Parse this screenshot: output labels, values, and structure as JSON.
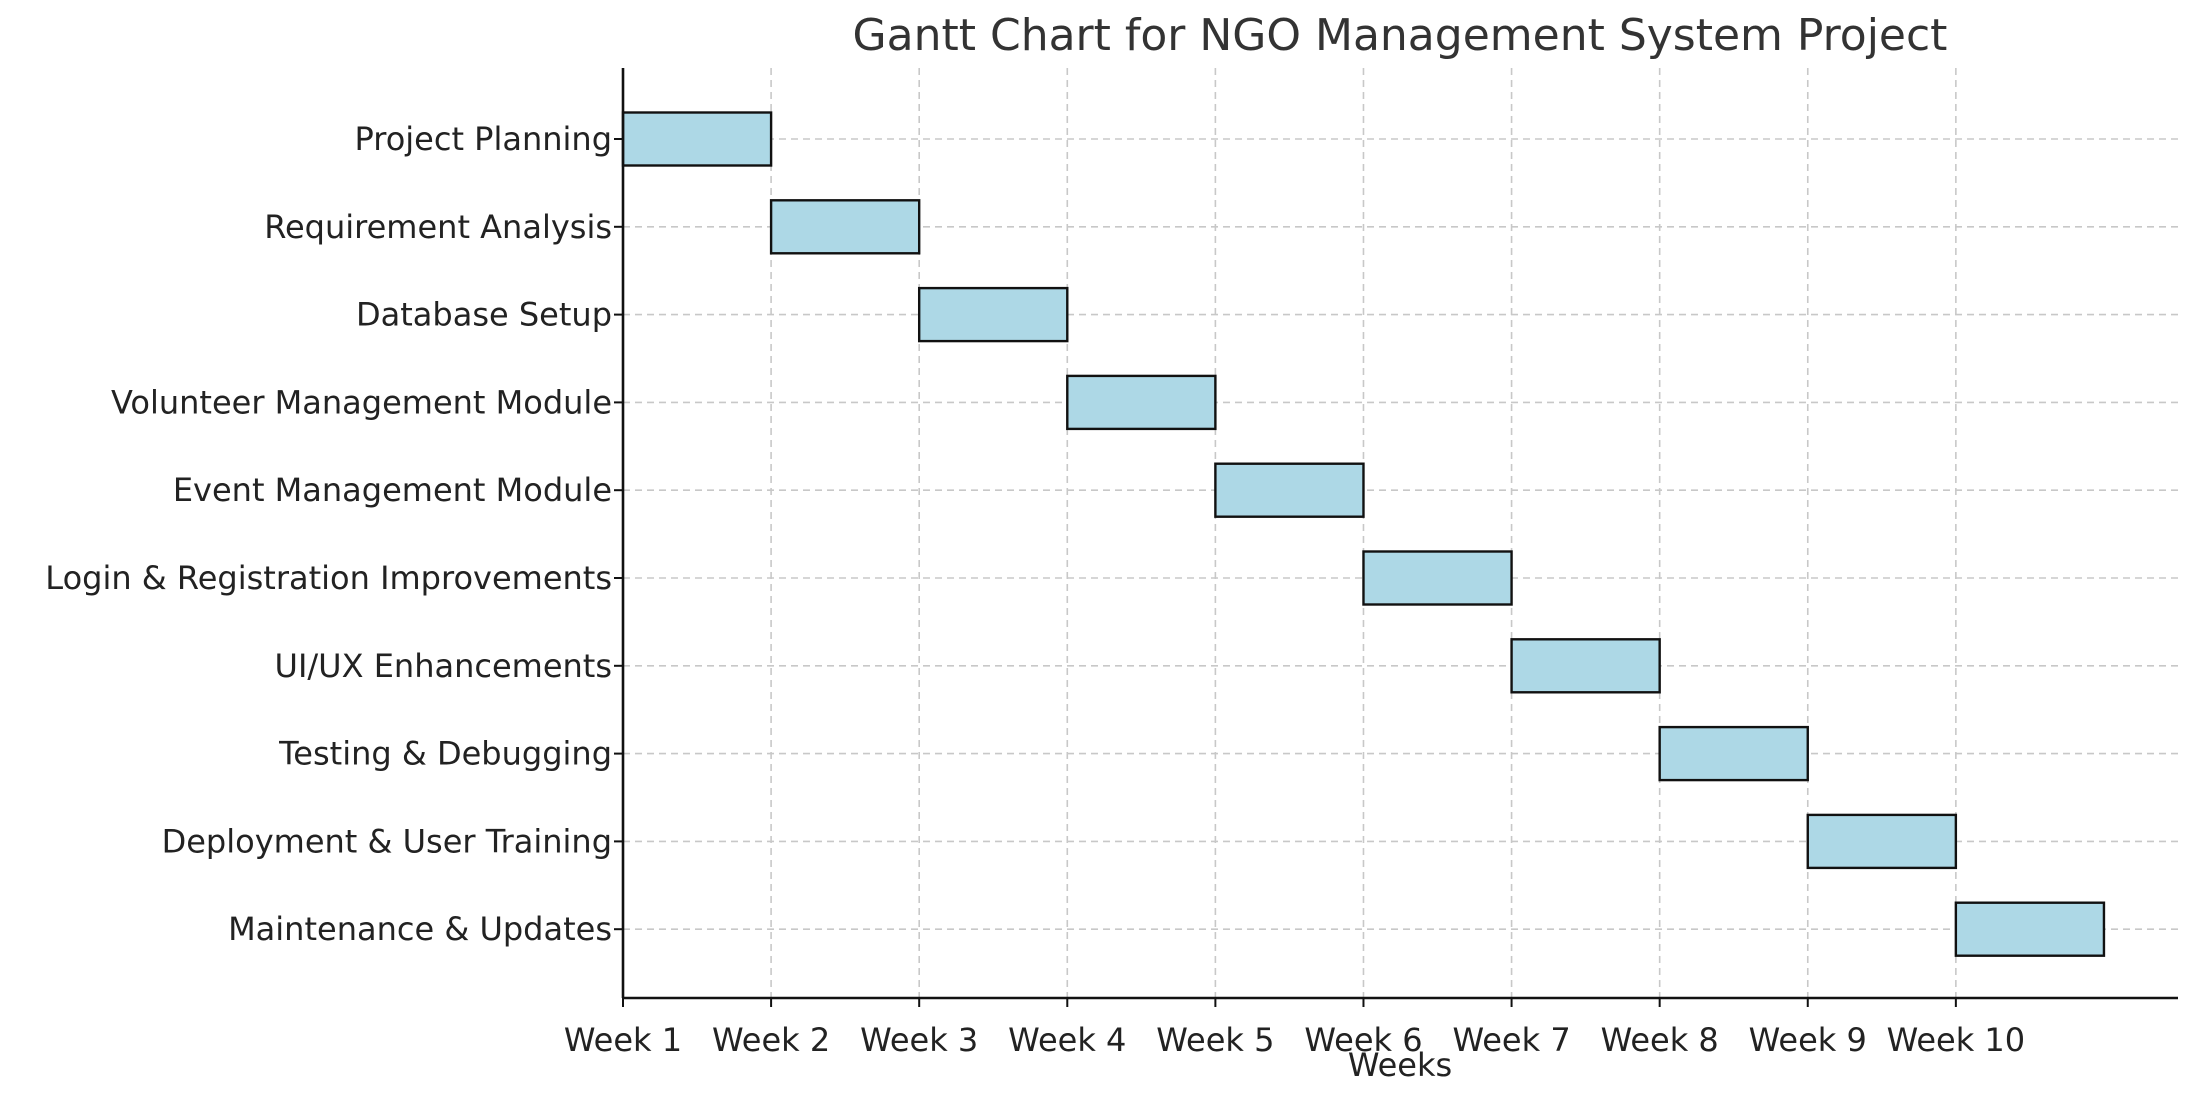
{
  "chart_data": {
    "type": "bar",
    "orientation": "horizontal",
    "subtype": "gantt",
    "title": "Gantt Chart for NGO Management System Project",
    "xlabel": "Weeks",
    "ylabel": "",
    "xlim": [
      1,
      11.5
    ],
    "x_ticks": [
      {
        "value": 1,
        "label": "Week 1"
      },
      {
        "value": 2,
        "label": "Week 2"
      },
      {
        "value": 3,
        "label": "Week 3"
      },
      {
        "value": 4,
        "label": "Week 4"
      },
      {
        "value": 5,
        "label": "Week 5"
      },
      {
        "value": 6,
        "label": "Week 6"
      },
      {
        "value": 7,
        "label": "Week 7"
      },
      {
        "value": 8,
        "label": "Week 8"
      },
      {
        "value": 9,
        "label": "Week 9"
      },
      {
        "value": 10,
        "label": "Week 10"
      }
    ],
    "tasks": [
      {
        "name": "Project Planning",
        "start": 1,
        "end": 2
      },
      {
        "name": "Requirement Analysis",
        "start": 2,
        "end": 3
      },
      {
        "name": "Database Setup",
        "start": 3,
        "end": 4
      },
      {
        "name": "Volunteer Management Module",
        "start": 4,
        "end": 5
      },
      {
        "name": "Event Management Module",
        "start": 5,
        "end": 6
      },
      {
        "name": "Login & Registration Improvements",
        "start": 6,
        "end": 7
      },
      {
        "name": "UI/UX Enhancements",
        "start": 7,
        "end": 8
      },
      {
        "name": "Testing & Debugging",
        "start": 8,
        "end": 9
      },
      {
        "name": "Deployment & User Training",
        "start": 9,
        "end": 10
      },
      {
        "name": "Maintenance & Updates",
        "start": 10,
        "end": 11
      }
    ],
    "grid": true,
    "colors": {
      "bar_fill": "#add8e6",
      "bar_edge": "#111111",
      "grid": "#c8c8c8",
      "axis": "#111111",
      "title": "#333333",
      "text": "#222222"
    }
  }
}
